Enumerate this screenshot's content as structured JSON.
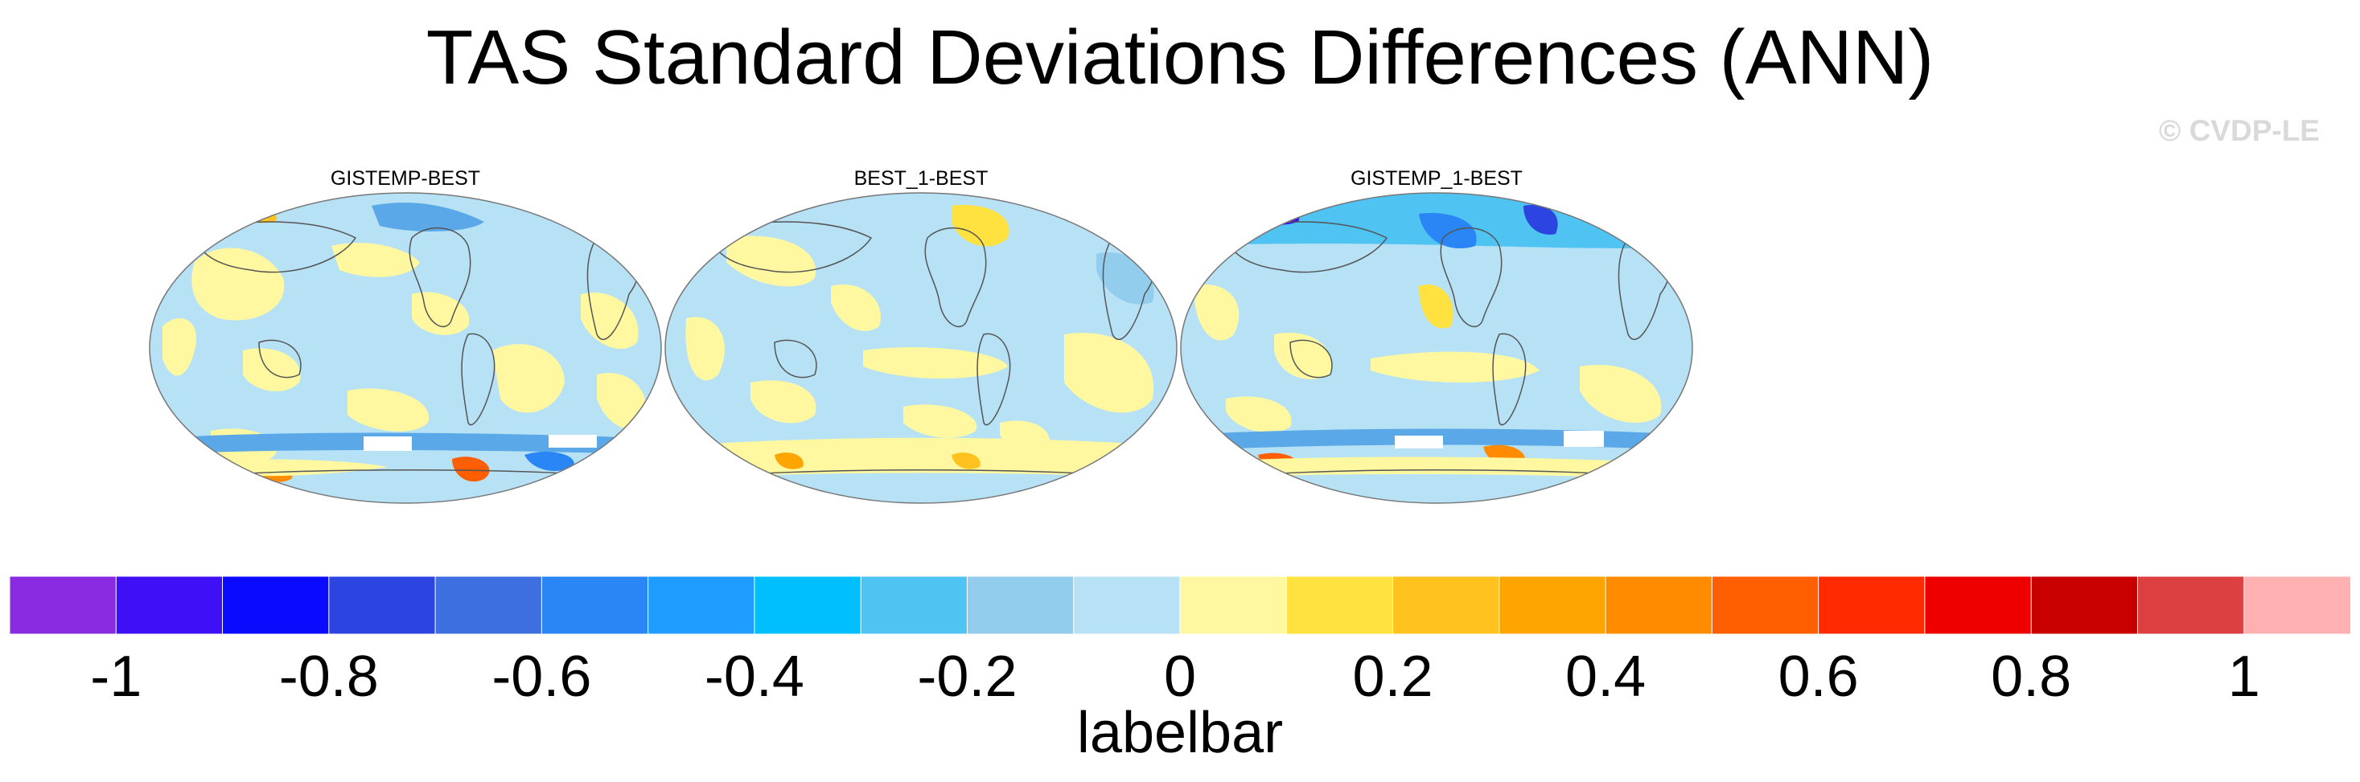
{
  "title": "TAS Standard Deviations Differences (ANN)",
  "credit": "© CVDP-LE",
  "panels": [
    {
      "title": "GISTEMP-BEST"
    },
    {
      "title": "BEST_1-BEST"
    },
    {
      "title": "GISTEMP_1-BEST"
    }
  ],
  "colorbar": {
    "colors": [
      "#8a2be2",
      "#3f0ff5",
      "#0a0aff",
      "#2c44e0",
      "#3d6fe0",
      "#2a86f5",
      "#1e9cff",
      "#00bfff",
      "#4fc3f2",
      "#92cdee",
      "#b7e1f5",
      "#fff8a0",
      "#ffe23f",
      "#ffc21f",
      "#ffa500",
      "#ff8c00",
      "#ff5f00",
      "#ff2a00",
      "#ee0000",
      "#c80000",
      "#dc4040",
      "#ffb0b0"
    ],
    "tick_values": [
      "-1",
      "-0.8",
      "-0.6",
      "-0.4",
      "-0.2",
      "0",
      "0.2",
      "0.4",
      "0.6",
      "0.8",
      "1"
    ],
    "label": "labelbar"
  }
}
